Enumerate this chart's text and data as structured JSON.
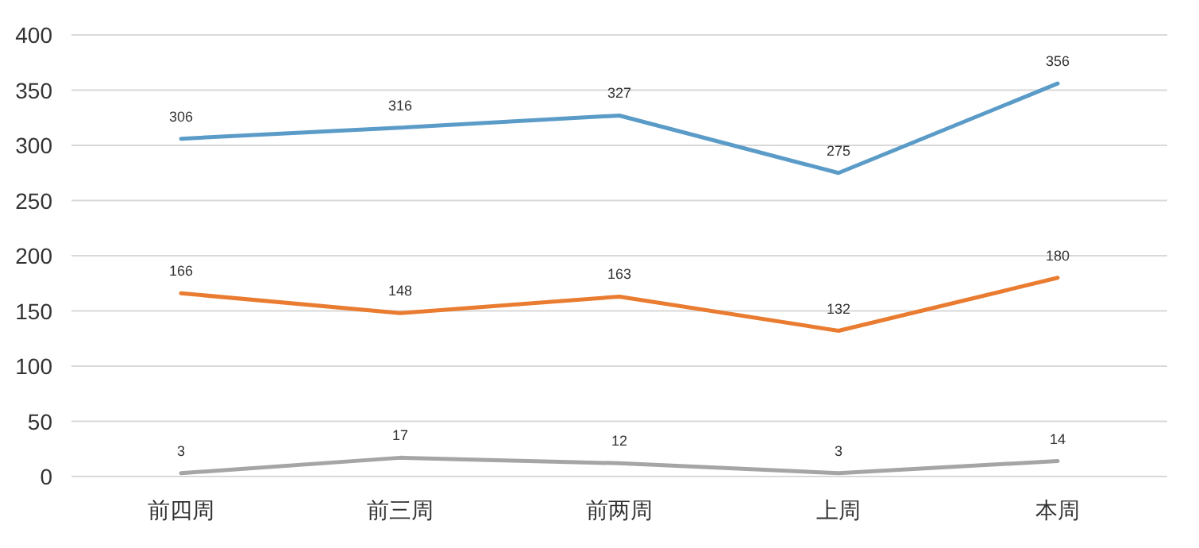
{
  "chart_data": {
    "type": "line",
    "categories": [
      "前四周",
      "前三周",
      "前两周",
      "上周",
      "本周"
    ],
    "series": [
      {
        "color": "#5b9bc8",
        "values": [
          306,
          316,
          327,
          275,
          356
        ]
      },
      {
        "color": "#e97c30",
        "values": [
          166,
          148,
          163,
          132,
          180
        ]
      },
      {
        "color": "#a5a5a5",
        "values": [
          3,
          17,
          12,
          3,
          14
        ]
      }
    ],
    "ylim": [
      0,
      400
    ],
    "yticks": [
      0,
      50,
      100,
      150,
      200,
      250,
      300,
      350,
      400
    ],
    "grid": "y",
    "data_labels": true,
    "marker": "none",
    "line_style": "solid"
  }
}
